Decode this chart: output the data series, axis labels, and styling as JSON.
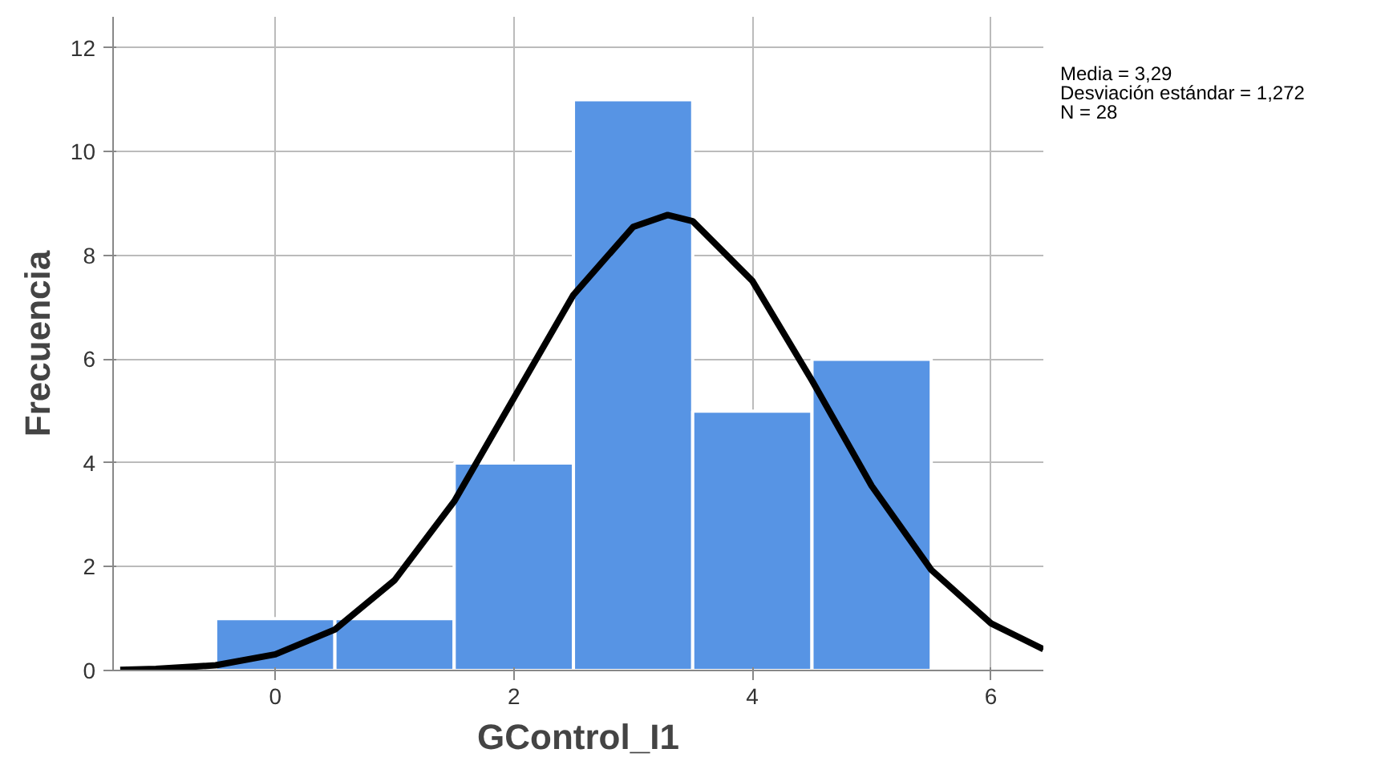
{
  "chart_data": {
    "type": "histogram",
    "xlabel": "GControl_I1",
    "ylabel": "Frecuencia",
    "bins": [
      -0.5,
      0.5,
      1.5,
      2.5,
      3.5,
      4.5,
      5.5
    ],
    "values": [
      1,
      1,
      4,
      11,
      5,
      6
    ],
    "color": "#5794e4",
    "series": [
      {
        "type": "line",
        "color": "#000000",
        "x": [
          -1.3,
          -1.0,
          -0.5,
          0.0,
          0.5,
          1.0,
          1.5,
          2.0,
          2.5,
          3.0,
          3.29,
          3.5,
          4.0,
          4.5,
          5.0,
          5.5,
          6.0,
          6.44
        ],
        "values": [
          0.01,
          0.03,
          0.1,
          0.31,
          0.79,
          1.74,
          3.26,
          5.25,
          7.24,
          8.55,
          8.78,
          8.66,
          7.51,
          5.59,
          3.56,
          1.94,
          0.91,
          0.41
        ]
      }
    ],
    "xlim": [
      -1.36,
      6.44
    ],
    "ylim": [
      0,
      12.6
    ],
    "xticks": [
      0,
      2,
      4,
      6
    ],
    "yticks": [
      0,
      2,
      4,
      6,
      8,
      10,
      12
    ],
    "grid": true,
    "annotations": [
      "Media = 3,29",
      "Desviación estándar = 1,272",
      "N = 28"
    ]
  }
}
